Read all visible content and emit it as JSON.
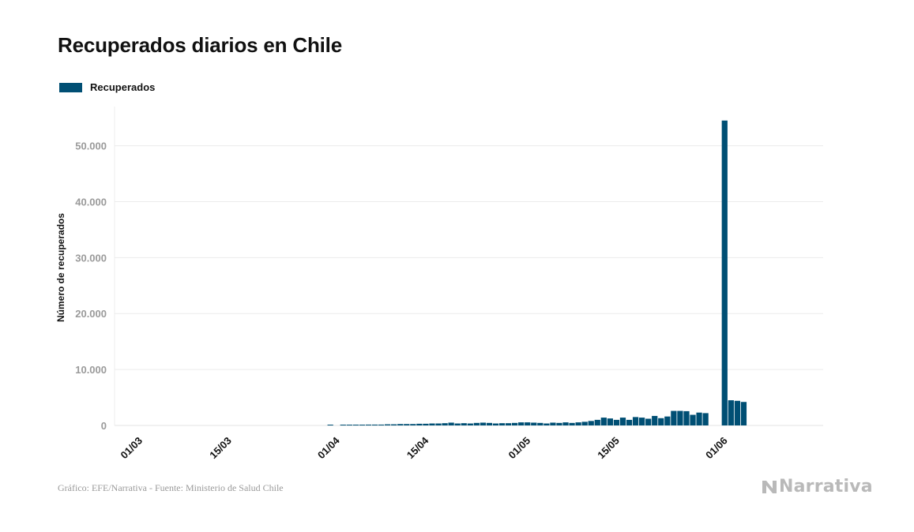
{
  "chart_data": {
    "type": "bar",
    "title": "Recuperados diarios en Chile",
    "series": [
      {
        "name": "Recuperados",
        "color": "#004f74",
        "values": [
          0,
          0,
          0,
          0,
          0,
          0,
          0,
          0,
          0,
          0,
          0,
          0,
          0,
          0,
          0,
          0,
          0,
          0,
          0,
          0,
          0,
          0,
          0,
          0,
          0,
          0,
          0,
          0,
          0,
          0,
          0,
          50,
          0,
          50,
          50,
          100,
          100,
          150,
          150,
          150,
          200,
          200,
          250,
          250,
          250,
          300,
          300,
          350,
          350,
          400,
          500,
          350,
          400,
          350,
          450,
          500,
          450,
          350,
          400,
          400,
          450,
          550,
          550,
          500,
          450,
          350,
          500,
          450,
          550,
          450,
          550,
          650,
          800,
          1000,
          1400,
          1250,
          1000,
          1400,
          1000,
          1500,
          1400,
          1200,
          1700,
          1300,
          1600,
          2600,
          2600,
          2550,
          1900,
          2300,
          2200,
          0,
          0,
          54500,
          4500,
          4400,
          4200
        ]
      }
    ],
    "x_start": "01/03",
    "x_ticks": [
      "01/03",
      "15/03",
      "01/04",
      "15/04",
      "01/05",
      "15/05",
      "01/06"
    ],
    "y_ticks": [
      "0",
      "10.000",
      "20.000",
      "30.000",
      "40.000",
      "50.000"
    ],
    "y_tick_values": [
      0,
      10000,
      20000,
      30000,
      40000,
      50000
    ],
    "ylabel": "Número de recuperados",
    "xlabel": "",
    "ylim": [
      0,
      57000
    ],
    "grid": true,
    "legend": "top-left"
  },
  "source": "Gráfico: EFE/Narrativa - Fuente: Ministerio de Salud Chile",
  "logo": "Narrativa"
}
